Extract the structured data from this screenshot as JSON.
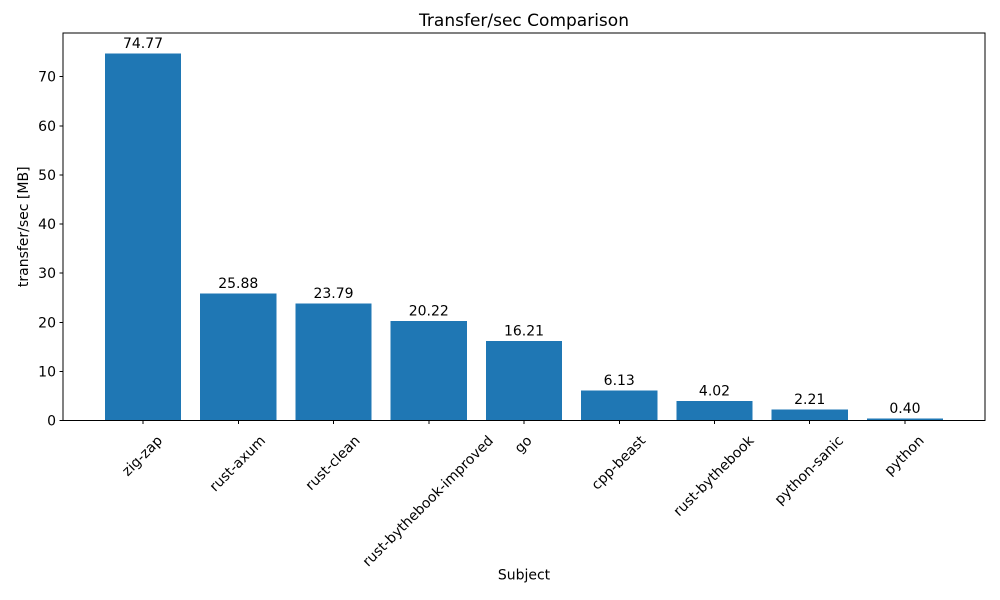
{
  "figure": {
    "background_color": "#ffffff",
    "spine_color": "#000000",
    "text_color": "#000000"
  },
  "chart_data": {
    "type": "bar",
    "title": "Transfer/sec Comparison",
    "xlabel": "Subject",
    "ylabel": "transfer/sec [MB]",
    "categories": [
      "zig-zap",
      "rust-axum",
      "rust-clean",
      "rust-bythebook-improved",
      "go",
      "cpp-beast",
      "rust-bythebook",
      "python-sanic",
      "python"
    ],
    "values": [
      74.77,
      25.88,
      23.79,
      20.22,
      16.21,
      6.13,
      4.02,
      2.21,
      0.4
    ],
    "value_labels": [
      "74.77",
      "25.88",
      "23.79",
      "20.22",
      "16.21",
      "6.13",
      "4.02",
      "2.21",
      "0.40"
    ],
    "bar_color": "#1f77b4",
    "ylim": [
      0,
      78.9
    ],
    "yticks": [
      0,
      10,
      20,
      30,
      40,
      50,
      60,
      70
    ],
    "ytick_labels": [
      "0",
      "10",
      "20",
      "30",
      "40",
      "50",
      "60",
      "70"
    ],
    "x_tick_rotation_deg": 45,
    "grid": false,
    "legend": null
  }
}
